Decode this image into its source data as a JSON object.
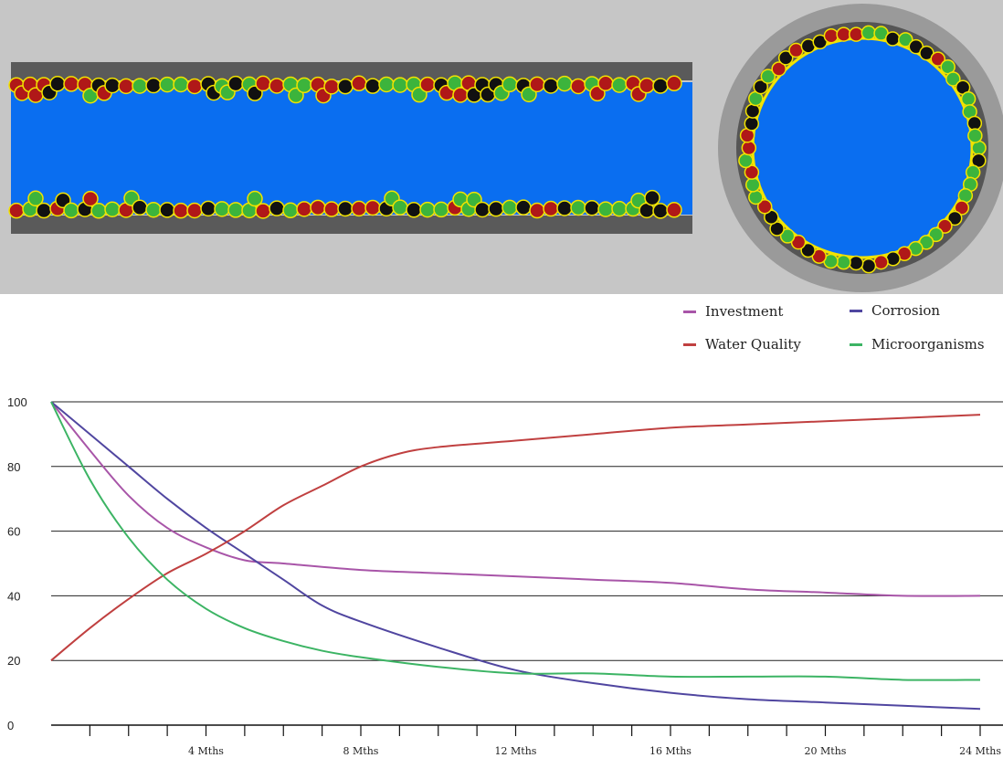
{
  "chart_data": {
    "type": "line",
    "title": "",
    "xlabel": "",
    "ylabel": "",
    "xlim": [
      0,
      24
    ],
    "ylim": [
      0,
      100
    ],
    "y_ticks": [
      {
        "value": 0,
        "label": "0"
      },
      {
        "value": 20,
        "label": "20"
      },
      {
        "value": 40,
        "label": "40"
      },
      {
        "value": 60,
        "label": "60"
      },
      {
        "value": 80,
        "label": "80"
      },
      {
        "value": 100,
        "label": "100"
      }
    ],
    "x_ticks": [
      {
        "value": 4,
        "label": "4 Mths"
      },
      {
        "value": 8,
        "label": "8 Mths"
      },
      {
        "value": 12,
        "label": "12 Mths"
      },
      {
        "value": 16,
        "label": "16 Mths"
      },
      {
        "value": 20,
        "label": "20 Mths"
      },
      {
        "value": 24,
        "label": "24 Mths"
      }
    ],
    "grid": "horizontal",
    "legend_position": "top-right",
    "series": [
      {
        "name": "Investment",
        "color": "#a855a8",
        "points": [
          [
            0,
            100
          ],
          [
            1,
            85
          ],
          [
            2,
            71
          ],
          [
            3,
            61
          ],
          [
            4,
            55
          ],
          [
            5,
            51
          ],
          [
            6,
            50
          ],
          [
            8,
            48
          ],
          [
            10,
            47
          ],
          [
            12,
            46
          ],
          [
            14,
            45
          ],
          [
            16,
            44
          ],
          [
            18,
            42
          ],
          [
            20,
            41
          ],
          [
            22,
            40
          ],
          [
            24,
            40
          ]
        ]
      },
      {
        "name": "Corrosion",
        "color": "#5046a0",
        "points": [
          [
            0,
            100
          ],
          [
            1,
            90
          ],
          [
            2,
            80
          ],
          [
            3,
            70
          ],
          [
            4,
            61
          ],
          [
            5,
            53
          ],
          [
            6,
            45
          ],
          [
            7,
            37
          ],
          [
            8,
            32
          ],
          [
            10,
            24
          ],
          [
            12,
            17
          ],
          [
            14,
            13
          ],
          [
            16,
            10
          ],
          [
            18,
            8
          ],
          [
            20,
            7
          ],
          [
            22,
            6
          ],
          [
            24,
            5
          ]
        ]
      },
      {
        "name": "Water Quality",
        "color": "#c04040",
        "points": [
          [
            0,
            20
          ],
          [
            1,
            30
          ],
          [
            2,
            39
          ],
          [
            3,
            47
          ],
          [
            4,
            53
          ],
          [
            5,
            60
          ],
          [
            6,
            68
          ],
          [
            7,
            74
          ],
          [
            8,
            80
          ],
          [
            9,
            84
          ],
          [
            10,
            86
          ],
          [
            12,
            88
          ],
          [
            14,
            90
          ],
          [
            16,
            92
          ],
          [
            18,
            93
          ],
          [
            20,
            94
          ],
          [
            22,
            95
          ],
          [
            24,
            96
          ]
        ]
      },
      {
        "name": "Microorganisms",
        "color": "#3cb464",
        "points": [
          [
            0,
            100
          ],
          [
            1,
            76
          ],
          [
            2,
            58
          ],
          [
            3,
            45
          ],
          [
            4,
            36
          ],
          [
            5,
            30
          ],
          [
            6,
            26
          ],
          [
            7,
            23
          ],
          [
            8,
            21
          ],
          [
            10,
            18
          ],
          [
            12,
            16
          ],
          [
            14,
            16
          ],
          [
            16,
            15
          ],
          [
            18,
            15
          ],
          [
            20,
            15
          ],
          [
            22,
            14
          ],
          [
            24,
            14
          ]
        ]
      }
    ]
  }
}
